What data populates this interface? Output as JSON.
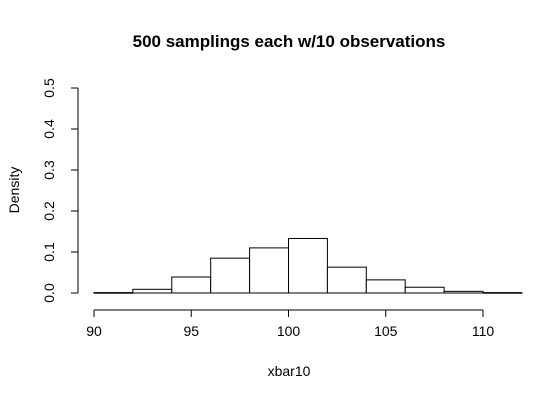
{
  "chart_data": {
    "type": "bar",
    "title": "500 samplings each w/10 observations",
    "xlabel": "xbar10",
    "ylabel": "Density",
    "xlim": [
      90,
      110
    ],
    "ylim": [
      0,
      0.5
    ],
    "bins": [
      {
        "x0": 90,
        "x1": 92,
        "value": 0.001
      },
      {
        "x0": 92,
        "x1": 94,
        "value": 0.009
      },
      {
        "x0": 94,
        "x1": 96,
        "value": 0.039
      },
      {
        "x0": 96,
        "x1": 98,
        "value": 0.085
      },
      {
        "x0": 98,
        "x1": 100,
        "value": 0.11
      },
      {
        "x0": 100,
        "x1": 102,
        "value": 0.133
      },
      {
        "x0": 102,
        "x1": 104,
        "value": 0.063
      },
      {
        "x0": 104,
        "x1": 106,
        "value": 0.032
      },
      {
        "x0": 106,
        "x1": 108,
        "value": 0.014
      },
      {
        "x0": 108,
        "x1": 110,
        "value": 0.004
      },
      {
        "x0": 110,
        "x1": 112,
        "value": 0.001
      }
    ],
    "x_ticks": [
      90,
      95,
      100,
      105,
      110
    ],
    "y_ticks": [
      0.0,
      0.1,
      0.2,
      0.3,
      0.4,
      0.5
    ],
    "y_tick_labels": [
      "0.0",
      "0.1",
      "0.2",
      "0.3",
      "0.4",
      "0.5"
    ],
    "grid": false,
    "bar_fill": "#ffffff",
    "bar_stroke": "#000000"
  }
}
